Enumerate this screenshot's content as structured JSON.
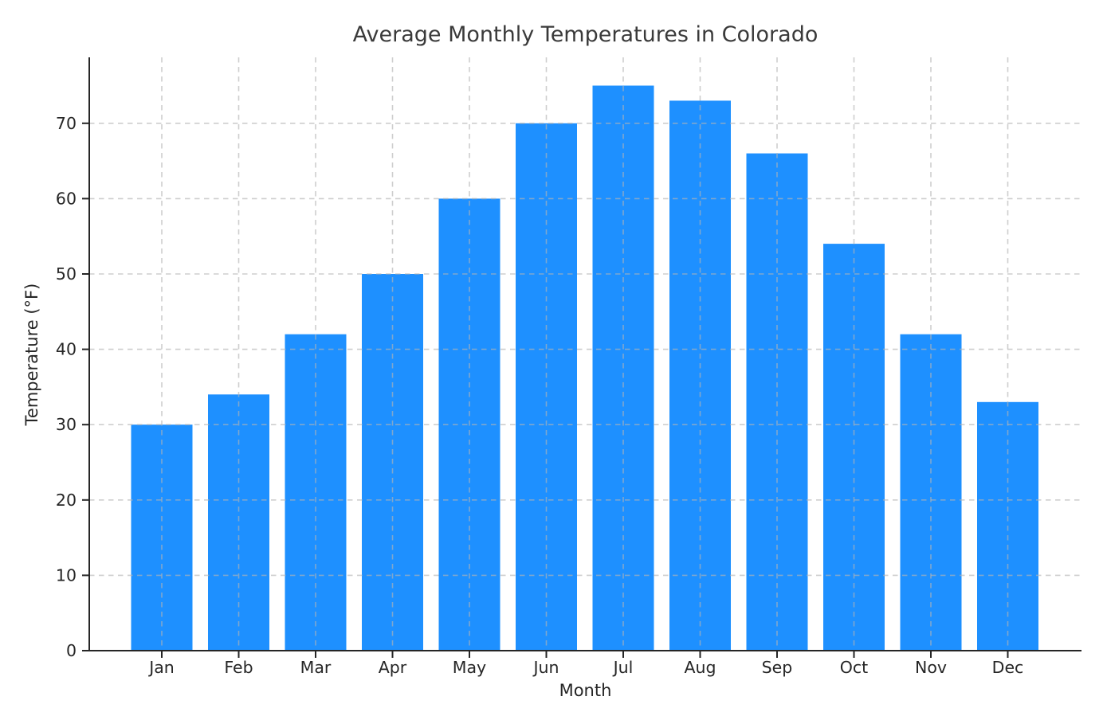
{
  "chart_data": {
    "type": "bar",
    "title": "Average Monthly Temperatures in Colorado",
    "xlabel": "Month",
    "ylabel": "Temperature (°F)",
    "categories": [
      "Jan",
      "Feb",
      "Mar",
      "Apr",
      "May",
      "Jun",
      "Jul",
      "Aug",
      "Sep",
      "Oct",
      "Nov",
      "Dec"
    ],
    "values": [
      30,
      34,
      42,
      50,
      60,
      70,
      75,
      73,
      66,
      54,
      42,
      33
    ],
    "yticks": [
      0,
      10,
      20,
      30,
      40,
      50,
      60,
      70
    ],
    "ylim": [
      0,
      78.75
    ],
    "bar_color": "#1e90ff",
    "axis_color": "#262626",
    "grid": true,
    "grid_style": "dashed",
    "grid_color": "#b3b3b3",
    "legend": "none",
    "background": "#ffffff"
  }
}
